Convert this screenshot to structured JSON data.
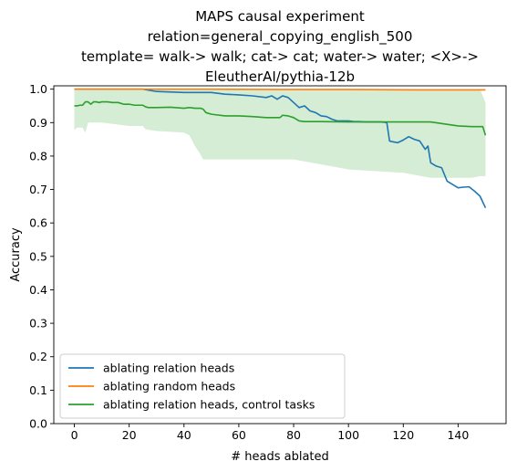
{
  "chart_data": {
    "type": "line",
    "title_lines": [
      "MAPS causal experiment",
      "relation=general_copying_english_500",
      "template= walk-> walk; cat-> cat; water-> water; <X>->",
      "EleutherAI/pythia-12b"
    ],
    "xlabel": "# heads ablated",
    "ylabel": "Accuracy",
    "xlim": [
      -7.5,
      157.5
    ],
    "ylim": [
      0.0,
      1.01
    ],
    "xticks": [
      0,
      20,
      40,
      60,
      80,
      100,
      120,
      140
    ],
    "yticks": [
      0.0,
      0.1,
      0.2,
      0.3,
      0.4,
      0.5,
      0.6,
      0.7,
      0.8,
      0.9,
      1.0
    ],
    "ytick_labels": [
      "0.0",
      "0.1",
      "0.2",
      "0.3",
      "0.4",
      "0.5",
      "0.6",
      "0.7",
      "0.8",
      "0.9",
      "1.0"
    ],
    "grid": false,
    "legend_position": "lower-left",
    "series": [
      {
        "name": "ablating relation heads",
        "color": "#1f77b4",
        "x": [
          0,
          10,
          20,
          25,
          30,
          40,
          50,
          55,
          60,
          65,
          70,
          72,
          74,
          76,
          78,
          80,
          82,
          84,
          86,
          88,
          90,
          92,
          94,
          96,
          98,
          100,
          102,
          104,
          106,
          108,
          110,
          112,
          114,
          115,
          116,
          118,
          120,
          122,
          124,
          126,
          128,
          129,
          130,
          132,
          134,
          136,
          138,
          140,
          142,
          144,
          146,
          148,
          150
        ],
        "values": [
          1.0,
          1.0,
          1.0,
          1.0,
          0.993,
          0.99,
          0.99,
          0.985,
          0.983,
          0.98,
          0.975,
          0.98,
          0.97,
          0.98,
          0.975,
          0.96,
          0.945,
          0.95,
          0.935,
          0.93,
          0.92,
          0.918,
          0.91,
          0.905,
          0.905,
          0.905,
          0.903,
          0.903,
          0.902,
          0.902,
          0.902,
          0.902,
          0.9,
          0.845,
          0.843,
          0.84,
          0.848,
          0.858,
          0.85,
          0.845,
          0.82,
          0.83,
          0.78,
          0.77,
          0.765,
          0.725,
          0.715,
          0.705,
          0.707,
          0.708,
          0.695,
          0.68,
          0.645
        ]
      },
      {
        "name": "ablating random heads",
        "color": "#ff7f0e",
        "x": [
          0,
          25,
          50,
          75,
          100,
          125,
          150
        ],
        "values": [
          1.0,
          1.0,
          1.0,
          0.999,
          0.999,
          0.998,
          0.998
        ]
      },
      {
        "name": "ablating relation heads, control tasks",
        "color": "#2ca02c",
        "x": [
          0,
          1,
          2,
          3,
          4,
          5,
          6,
          7,
          8,
          9,
          10,
          12,
          14,
          16,
          18,
          20,
          22,
          25,
          26,
          27,
          30,
          35,
          40,
          42,
          44,
          46,
          47,
          48,
          50,
          55,
          60,
          65,
          70,
          75,
          76,
          78,
          80,
          82,
          84,
          90,
          100,
          110,
          120,
          130,
          140,
          145,
          149,
          150
        ],
        "values": [
          0.95,
          0.95,
          0.952,
          0.952,
          0.962,
          0.962,
          0.955,
          0.962,
          0.962,
          0.96,
          0.962,
          0.962,
          0.96,
          0.96,
          0.955,
          0.955,
          0.952,
          0.952,
          0.947,
          0.945,
          0.945,
          0.946,
          0.943,
          0.945,
          0.943,
          0.943,
          0.94,
          0.93,
          0.925,
          0.92,
          0.92,
          0.918,
          0.915,
          0.915,
          0.922,
          0.92,
          0.915,
          0.905,
          0.903,
          0.903,
          0.902,
          0.902,
          0.902,
          0.902,
          0.89,
          0.888,
          0.888,
          0.862
        ]
      }
    ],
    "band": {
      "series": "ablating relation heads, control tasks",
      "color": "#2ca02c",
      "opacity": 0.2,
      "x": [
        0,
        1,
        3,
        4,
        5,
        10,
        20,
        25,
        26,
        30,
        40,
        42,
        44,
        46,
        47,
        48,
        50,
        55,
        60,
        65,
        70,
        80,
        100,
        120,
        130,
        140,
        145,
        148,
        150
      ],
      "lower": [
        0.878,
        0.885,
        0.885,
        0.87,
        0.9,
        0.9,
        0.89,
        0.89,
        0.88,
        0.875,
        0.87,
        0.862,
        0.83,
        0.805,
        0.79,
        0.79,
        0.79,
        0.79,
        0.79,
        0.79,
        0.79,
        0.79,
        0.76,
        0.75,
        0.735,
        0.735,
        0.735,
        0.74,
        0.74
      ],
      "upper": [
        1.0,
        1.0,
        1.0,
        1.0,
        1.0,
        1.0,
        1.0,
        1.0,
        1.0,
        1.0,
        1.0,
        1.0,
        1.0,
        1.0,
        1.0,
        1.0,
        1.0,
        1.0,
        1.0,
        1.0,
        1.0,
        1.0,
        1.0,
        1.0,
        1.0,
        1.0,
        1.0,
        1.0,
        0.96
      ]
    }
  }
}
